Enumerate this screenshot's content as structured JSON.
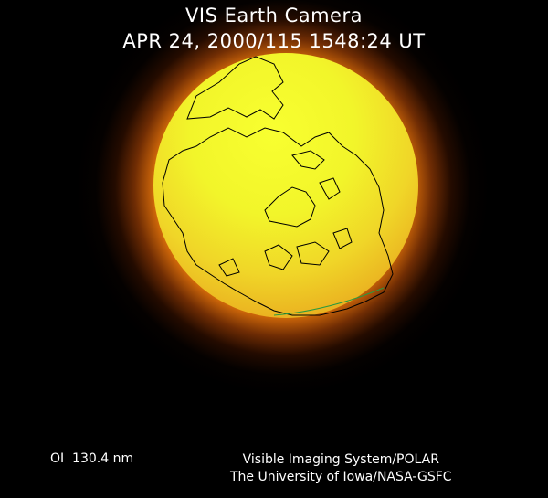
{
  "header": {
    "title": "VIS Earth Camera",
    "timestamp": "APR 24, 2000/115 1548:24 UT"
  },
  "footer": {
    "wavelength": "OI  130.4 nm",
    "credit_line1": "Visible Imaging System/POLAR",
    "credit_line2": "The University of Iowa/NASA-GSFC"
  },
  "colors": {
    "background": "#000000",
    "disk": "#f2f52a",
    "glow": "#e08a10",
    "coastline": "#000000",
    "terminator": "#2a9a40"
  }
}
